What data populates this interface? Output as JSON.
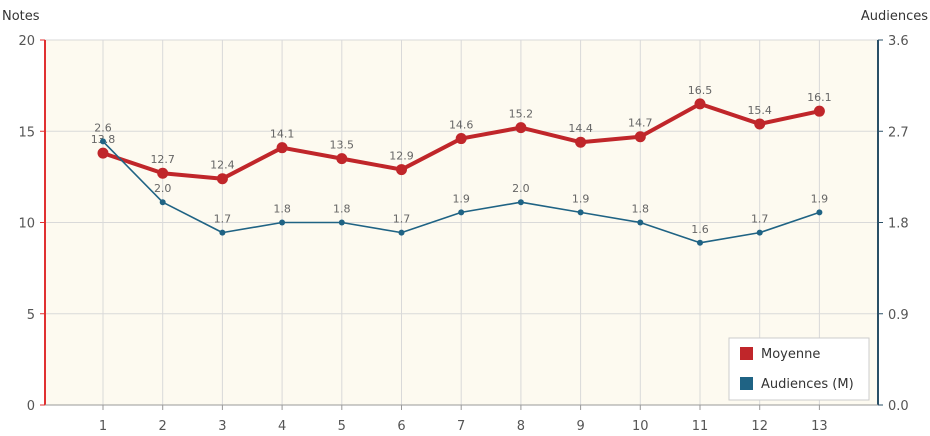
{
  "chart_data": {
    "type": "line",
    "categories": [
      "1",
      "2",
      "3",
      "4",
      "5",
      "6",
      "7",
      "8",
      "9",
      "10",
      "11",
      "12",
      "13"
    ],
    "y_left": {
      "label": "Notes",
      "ylim": [
        0,
        20
      ],
      "ticks": [
        0,
        5,
        10,
        15,
        20
      ]
    },
    "y_right": {
      "label": "Audiences",
      "ylim": [
        0,
        3.6
      ],
      "ticks": [
        "0.0",
        "0.9",
        "1.8",
        "2.7",
        "3.6"
      ]
    },
    "series": [
      {
        "name": "Moyenne",
        "axis": "left",
        "color": "#c0262a",
        "values": [
          13.8,
          12.7,
          12.4,
          14.1,
          13.5,
          12.9,
          14.6,
          15.2,
          14.4,
          14.7,
          16.5,
          15.4,
          16.1
        ],
        "labels": [
          "13.8",
          "12.7",
          "12.4",
          "14.1",
          "13.5",
          "12.9",
          "14.6",
          "15.2",
          "14.4",
          "14.7",
          "16.5",
          "15.4",
          "16.1"
        ]
      },
      {
        "name": "Audiences (M)",
        "axis": "right",
        "color": "#1f6384",
        "values": [
          2.6,
          2.0,
          1.7,
          1.8,
          1.8,
          1.7,
          1.9,
          2.0,
          1.9,
          1.8,
          1.6,
          1.7,
          1.9
        ],
        "labels": [
          "2.6",
          "2.0",
          "1.7",
          "1.8",
          "1.8",
          "1.7",
          "1.9",
          "2.0",
          "1.9",
          "1.8",
          "1.6",
          "1.7",
          "1.9"
        ]
      }
    ],
    "grid": true,
    "legend": "bottom-right",
    "colors": {
      "plot_background": "#fdfaf0",
      "grid": "#d9d9d9",
      "left_axis": "#e03030",
      "right_axis": "#2a4f66"
    }
  }
}
